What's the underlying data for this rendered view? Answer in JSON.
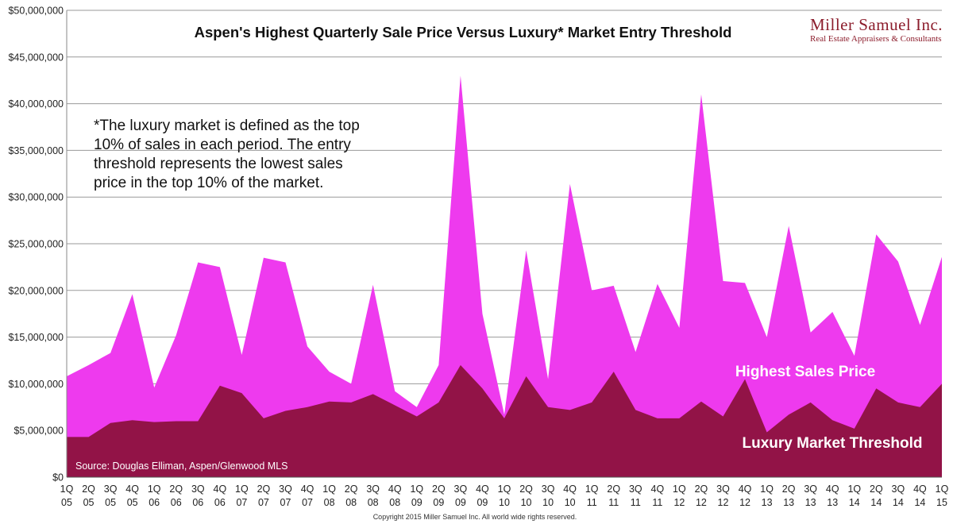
{
  "branding": {
    "company": "Miller Samuel Inc.",
    "tagline": "Real Estate Appraisers & Consultants",
    "copyright": "Copyright 2015 Miller Samuel Inc.  All world wide rights reserved."
  },
  "colors": {
    "highest": "#ee3aee",
    "threshold": "#921347",
    "grid": "#9a9a9a"
  },
  "chart_data": {
    "type": "area",
    "title": "Aspen's Highest Quarterly Sale Price Versus Luxury* Market Entry Threshold",
    "note_lines": [
      "*The luxury market is defined as the top",
      "10% of sales in each period.  The entry",
      "threshold represents the lowest sales",
      "price in the top 10% of the market."
    ],
    "source": "Source: Douglas Elliman, Aspen/Glenwood MLS",
    "ylim": [
      0,
      50000000
    ],
    "y_ticks": [
      {
        "value": 0,
        "label": "$0"
      },
      {
        "value": 5000000,
        "label": "$5,000,000"
      },
      {
        "value": 10000000,
        "label": "$10,000,000"
      },
      {
        "value": 15000000,
        "label": "$15,000,000"
      },
      {
        "value": 20000000,
        "label": "$20,000,000"
      },
      {
        "value": 25000000,
        "label": "$25,000,000"
      },
      {
        "value": 30000000,
        "label": "$30,000,000"
      },
      {
        "value": 35000000,
        "label": "$35,000,000"
      },
      {
        "value": 40000000,
        "label": "$40,000,000"
      },
      {
        "value": 45000000,
        "label": "$45,000,000"
      },
      {
        "value": 50000000,
        "label": "$50,000,000"
      }
    ],
    "categories": [
      [
        "1Q",
        "05"
      ],
      [
        "2Q",
        "05"
      ],
      [
        "3Q",
        "05"
      ],
      [
        "4Q",
        "05"
      ],
      [
        "1Q",
        "06"
      ],
      [
        "2Q",
        "06"
      ],
      [
        "3Q",
        "06"
      ],
      [
        "4Q",
        "06"
      ],
      [
        "1Q",
        "07"
      ],
      [
        "2Q",
        "07"
      ],
      [
        "3Q",
        "07"
      ],
      [
        "4Q",
        "07"
      ],
      [
        "1Q",
        "08"
      ],
      [
        "2Q",
        "08"
      ],
      [
        "3Q",
        "08"
      ],
      [
        "4Q",
        "08"
      ],
      [
        "1Q",
        "09"
      ],
      [
        "2Q",
        "09"
      ],
      [
        "3Q",
        "09"
      ],
      [
        "4Q",
        "09"
      ],
      [
        "1Q",
        "10"
      ],
      [
        "2Q",
        "10"
      ],
      [
        "3Q",
        "10"
      ],
      [
        "4Q",
        "10"
      ],
      [
        "1Q",
        "11"
      ],
      [
        "2Q",
        "11"
      ],
      [
        "3Q",
        "11"
      ],
      [
        "4Q",
        "11"
      ],
      [
        "1Q",
        "12"
      ],
      [
        "2Q",
        "12"
      ],
      [
        "3Q",
        "12"
      ],
      [
        "4Q",
        "12"
      ],
      [
        "1Q",
        "13"
      ],
      [
        "2Q",
        "13"
      ],
      [
        "3Q",
        "13"
      ],
      [
        "4Q",
        "13"
      ],
      [
        "1Q",
        "14"
      ],
      [
        "2Q",
        "14"
      ],
      [
        "3Q",
        "14"
      ],
      [
        "4Q",
        "14"
      ],
      [
        "1Q",
        "15"
      ]
    ],
    "series": [
      {
        "name": "Highest Sales Price",
        "values": [
          10800000,
          12000000,
          13300000,
          19600000,
          9600000,
          15200000,
          23000000,
          22500000,
          13100000,
          23500000,
          23000000,
          14000000,
          11300000,
          10000000,
          20600000,
          9200000,
          7500000,
          12000000,
          43000000,
          17500000,
          6700000,
          24300000,
          10500000,
          31400000,
          20000000,
          20500000,
          13400000,
          20700000,
          16000000,
          41000000,
          21000000,
          20800000,
          15000000,
          26900000,
          15500000,
          17700000,
          13000000,
          26000000,
          23100000,
          16300000,
          23600000
        ]
      },
      {
        "name": "Luxury Market Threshold",
        "values": [
          4300000,
          4300000,
          5800000,
          6100000,
          5900000,
          6000000,
          6000000,
          9800000,
          9000000,
          6300000,
          7100000,
          7500000,
          8100000,
          8000000,
          8900000,
          7700000,
          6500000,
          8000000,
          12000000,
          9500000,
          6300000,
          10800000,
          7500000,
          7200000,
          8000000,
          11300000,
          7200000,
          6300000,
          6300000,
          8100000,
          6500000,
          10500000,
          4800000,
          6700000,
          8000000,
          6100000,
          5200000,
          9500000,
          8000000,
          7500000,
          10000000
        ]
      }
    ]
  }
}
